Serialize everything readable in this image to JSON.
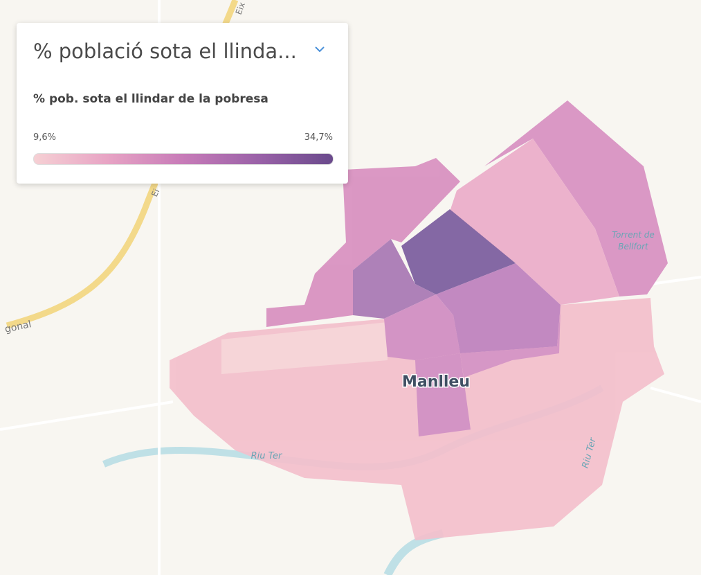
{
  "legend": {
    "title": "% població sota el llinda...",
    "subtitle": "% pob. sota el llindar de la pobresa",
    "min_label": "9,6%",
    "max_label": "34,7%"
  },
  "map_labels": {
    "town": "Manlleu",
    "river_west": "Riu Ter",
    "river_east": "Riu Ter",
    "stream_line1": "Torrent de",
    "stream_line2": "Bellfort",
    "road_west": "gonal",
    "road_north": "Eix",
    "road_north2": "Ei"
  }
}
